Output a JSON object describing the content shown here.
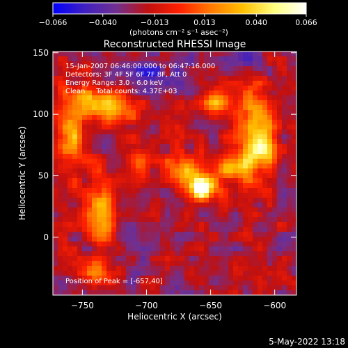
{
  "chart_data": {
    "type": "heatmap",
    "title": "Reconstructed RHESSI Image",
    "xlabel": "Heliocentric X (arcsec)",
    "ylabel": "Heliocentric Y (arcsec)",
    "xlim": [
      -773,
      -583
    ],
    "ylim": [
      -47,
      151
    ],
    "xticks": [
      -750,
      -700,
      -650,
      -600
    ],
    "yticks": [
      0,
      50,
      100,
      150
    ],
    "xtick_labels": [
      "−750",
      "−700",
      "−650",
      "−600"
    ],
    "ytick_labels": [
      "0",
      "50",
      "100",
      "150"
    ],
    "colorbar": {
      "range": [
        -0.066,
        0.066
      ],
      "ticks": [
        -0.066,
        -0.04,
        -0.013,
        0.013,
        0.04,
        0.066
      ],
      "tick_labels": [
        "−0.066",
        "−0.040",
        "−0.013",
        "0.013",
        "0.040",
        "0.066"
      ],
      "unit_label": "(photons cm⁻² s⁻¹ asec⁻²)",
      "colormap": [
        "#0000ff",
        "#4020c0",
        "#703090",
        "#c01010",
        "#ff2000",
        "#ff7a00",
        "#ffc000",
        "#ffff80",
        "#ffffff"
      ]
    },
    "info_lines": [
      "15-Jan-2007 06:46:00.000 to 06:47:16.000",
      "Detectors: 3F 4F 5F 6F 7F 8F, Att 0",
      "Energy Range: 3.0 - 6.0 keV",
      "Clean     Total counts: 4.37E+03"
    ],
    "peak_label": "Position of Peak = [-657,40]",
    "peak": {
      "x": -657,
      "y": 40,
      "value": 0.066
    },
    "sources": [
      {
        "x": -657,
        "y": 40,
        "value": 0.066,
        "sx": 9,
        "sy": 7
      },
      {
        "x": -672,
        "y": 55,
        "value": 0.03,
        "sx": 10,
        "sy": 9
      },
      {
        "x": -630,
        "y": 57,
        "value": 0.032,
        "sx": 10,
        "sy": 9
      },
      {
        "x": -615,
        "y": 90,
        "value": 0.036,
        "sx": 10,
        "sy": 22
      },
      {
        "x": -608,
        "y": 72,
        "value": 0.02,
        "sx": 7,
        "sy": 10
      },
      {
        "x": -643,
        "y": 110,
        "value": 0.028,
        "sx": 9,
        "sy": 8
      },
      {
        "x": -760,
        "y": 85,
        "value": 0.028,
        "sx": 9,
        "sy": 22
      },
      {
        "x": -725,
        "y": 105,
        "value": 0.03,
        "sx": 12,
        "sy": 10
      },
      {
        "x": -745,
        "y": 110,
        "value": 0.026,
        "sx": 9,
        "sy": 8
      },
      {
        "x": -735,
        "y": 20,
        "value": 0.026,
        "sx": 8,
        "sy": 22
      },
      {
        "x": -707,
        "y": 62,
        "value": 0.018,
        "sx": 7,
        "sy": 10
      },
      {
        "x": -740,
        "y": -30,
        "value": 0.014,
        "sx": 9,
        "sy": 8
      },
      {
        "x": -700,
        "y": 133,
        "value": -0.05,
        "sx": 14,
        "sy": 10
      },
      {
        "x": -625,
        "y": 145,
        "value": -0.04,
        "sx": 12,
        "sy": 7
      },
      {
        "x": -590,
        "y": 30,
        "value": -0.02,
        "sx": 10,
        "sy": 20
      }
    ]
  },
  "footer": {
    "timestamp": "5-May-2022 13:18"
  }
}
